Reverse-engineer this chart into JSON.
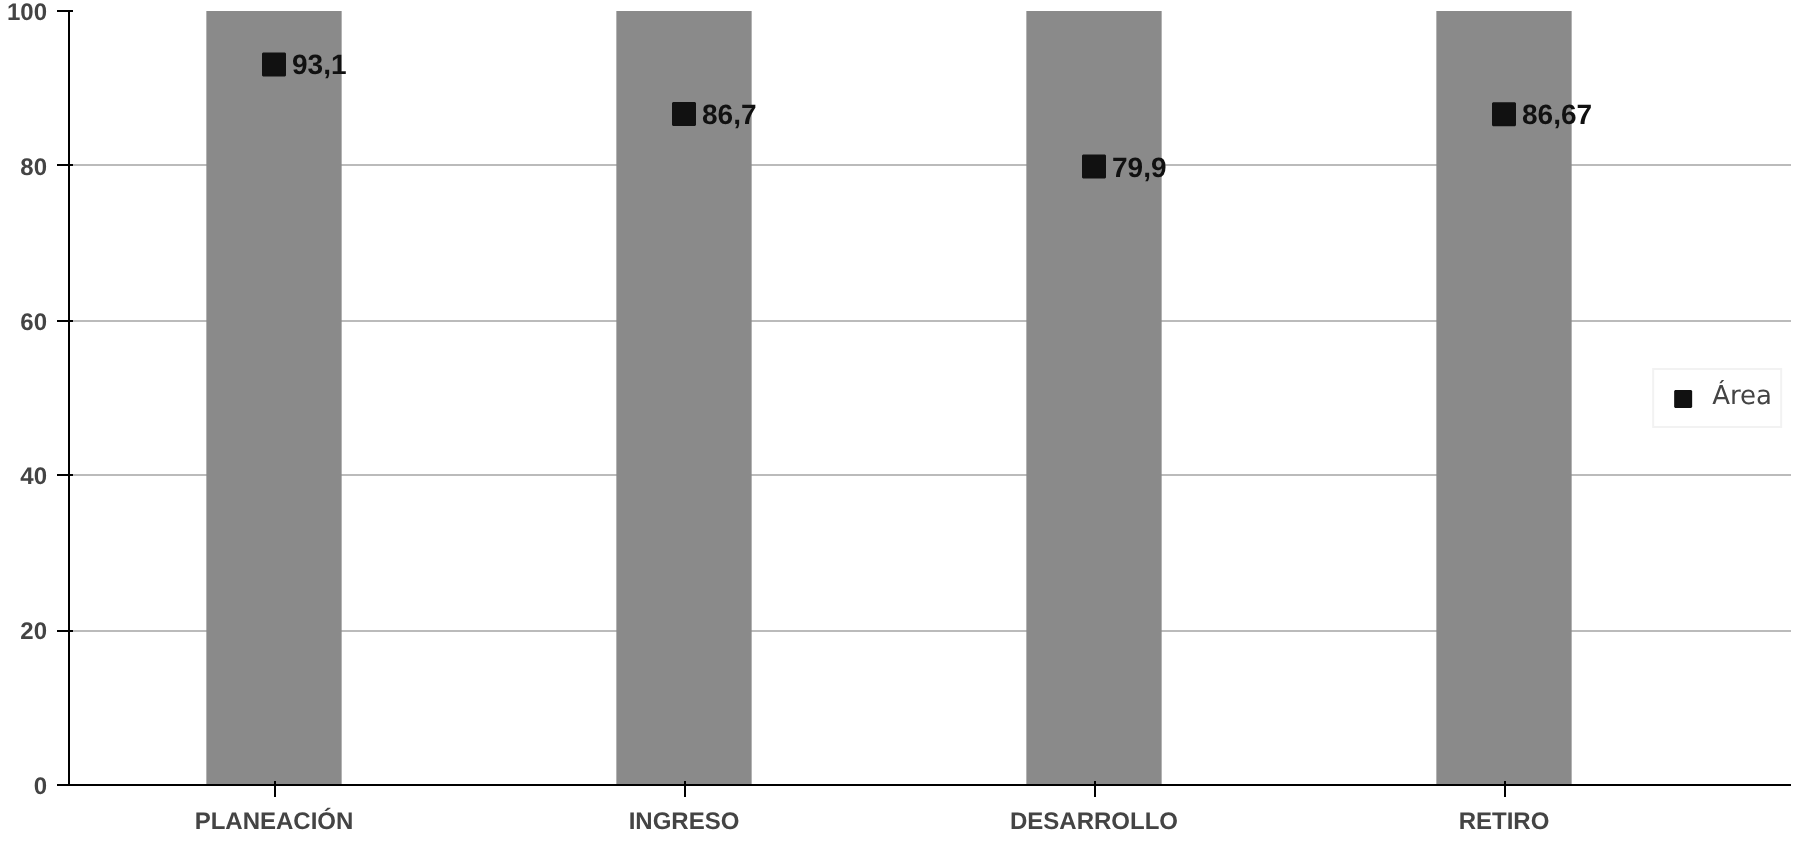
{
  "chart_data": {
    "type": "bar",
    "categories": [
      "PLANEACIÓN",
      "INGRESO",
      "DESARROLLO",
      "RETIRO"
    ],
    "series": [
      {
        "color": "#8a8a8a",
        "values": [
          100,
          100,
          100,
          100
        ]
      },
      {
        "type": "scatter",
        "name": "Área",
        "color": "#111111",
        "values": [
          93.1,
          86.7,
          79.9,
          86.67
        ],
        "value_labels": [
          "93,1",
          "86,7",
          "79,9",
          "86,67"
        ]
      }
    ],
    "ylim": [
      0,
      100
    ],
    "yticks": [
      0,
      20,
      40,
      60,
      80,
      100
    ],
    "grid": "y",
    "legend": "right",
    "marker": "square"
  }
}
